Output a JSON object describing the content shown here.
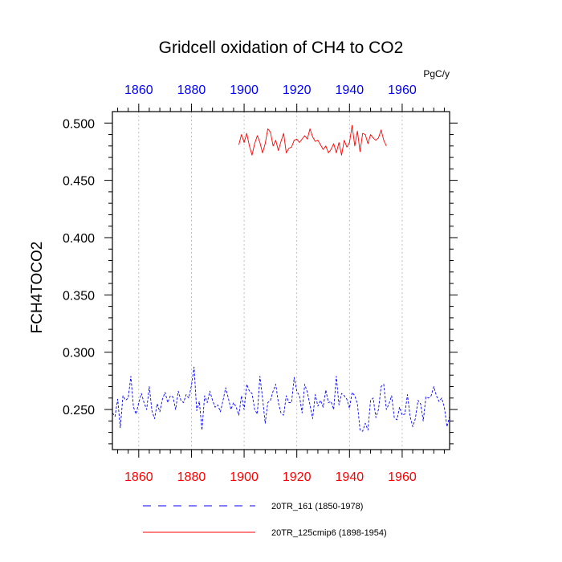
{
  "chart_data": {
    "type": "line",
    "title": "Gridcell oxidation of CH4 to CO2",
    "ylabel": "FCH4TOCO2",
    "units": "PgC/y",
    "xlabel": "",
    "xlim": [
      1850,
      1978
    ],
    "ylim": [
      0.215,
      0.51
    ],
    "yticks": [
      "0.250",
      "0.300",
      "0.350",
      "0.400",
      "0.450",
      "0.500"
    ],
    "xticks_bottom": [
      "1860",
      "1880",
      "1900",
      "1920",
      "1940",
      "1960"
    ],
    "xticks_top": [
      "1860",
      "1880",
      "1900",
      "1920",
      "1940",
      "1960"
    ],
    "grid_x": [
      1860,
      1880,
      1900,
      1920,
      1940,
      1960
    ],
    "series": [
      {
        "name": "20TR_161 (1850-1978)",
        "color": "#0000ff",
        "dash": "dashed",
        "start_year": 1850,
        "values": [
          0.247,
          0.244,
          0.259,
          0.234,
          0.262,
          0.258,
          0.26,
          0.279,
          0.252,
          0.246,
          0.256,
          0.264,
          0.256,
          0.25,
          0.27,
          0.249,
          0.242,
          0.255,
          0.248,
          0.259,
          0.265,
          0.256,
          0.262,
          0.261,
          0.25,
          0.266,
          0.258,
          0.256,
          0.263,
          0.26,
          0.271,
          0.287,
          0.249,
          0.257,
          0.232,
          0.262,
          0.256,
          0.266,
          0.258,
          0.252,
          0.254,
          0.248,
          0.258,
          0.269,
          0.26,
          0.25,
          0.256,
          0.252,
          0.245,
          0.262,
          0.25,
          0.272,
          0.266,
          0.264,
          0.25,
          0.246,
          0.279,
          0.26,
          0.238,
          0.256,
          0.258,
          0.266,
          0.272,
          0.256,
          0.247,
          0.245,
          0.262,
          0.256,
          0.256,
          0.278,
          0.266,
          0.262,
          0.247,
          0.272,
          0.265,
          0.254,
          0.242,
          0.263,
          0.253,
          0.258,
          0.252,
          0.267,
          0.256,
          0.257,
          0.25,
          0.279,
          0.254,
          0.264,
          0.262,
          0.259,
          0.251,
          0.265,
          0.262,
          0.255,
          0.232,
          0.231,
          0.238,
          0.232,
          0.258,
          0.26,
          0.243,
          0.25,
          0.27,
          0.272,
          0.25,
          0.255,
          0.262,
          0.243,
          0.241,
          0.252,
          0.245,
          0.246,
          0.263,
          0.244,
          0.235,
          0.242,
          0.258,
          0.255,
          0.24,
          0.261,
          0.26,
          0.262,
          0.27,
          0.262,
          0.257,
          0.26,
          0.252,
          0.235,
          0.244
        ]
      },
      {
        "name": "20TR_125cmip6 (1898-1954)",
        "color": "#ff0000",
        "dash": "solid",
        "start_year": 1898,
        "values": [
          0.481,
          0.49,
          0.483,
          0.491,
          0.48,
          0.472,
          0.482,
          0.489,
          0.483,
          0.474,
          0.482,
          0.495,
          0.492,
          0.48,
          0.485,
          0.476,
          0.484,
          0.491,
          0.474,
          0.478,
          0.479,
          0.485,
          0.486,
          0.483,
          0.486,
          0.489,
          0.486,
          0.495,
          0.488,
          0.484,
          0.485,
          0.481,
          0.477,
          0.48,
          0.474,
          0.477,
          0.482,
          0.474,
          0.483,
          0.472,
          0.485,
          0.479,
          0.483,
          0.498,
          0.48,
          0.493,
          0.475,
          0.491,
          0.49,
          0.482,
          0.49,
          0.487,
          0.485,
          0.487,
          0.494,
          0.485,
          0.48
        ]
      }
    ],
    "legend": {
      "position": "bottom",
      "items": [
        {
          "label": "20TR_161 (1850-1978)",
          "color": "#0000ff",
          "dash": "dashed"
        },
        {
          "label": "20TR_125cmip6 (1898-1954)",
          "color": "#ff0000",
          "dash": "solid"
        }
      ]
    }
  }
}
